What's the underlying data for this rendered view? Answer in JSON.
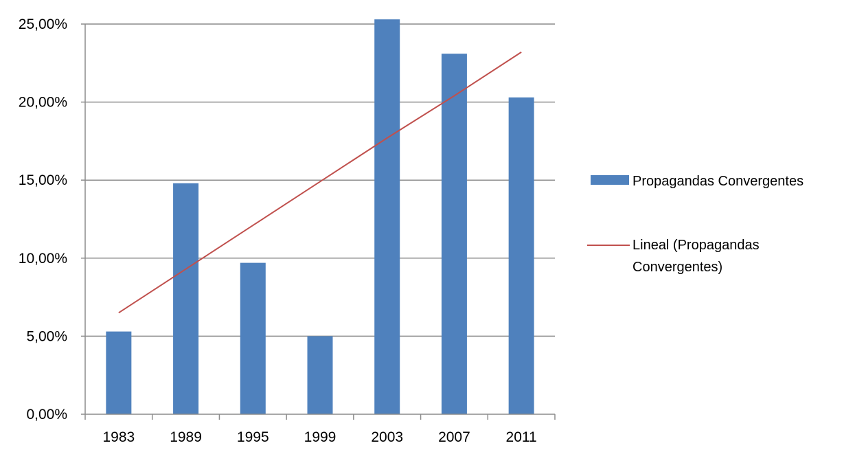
{
  "chart_data": {
    "type": "bar",
    "title": "",
    "xlabel": "",
    "ylabel": "",
    "categories": [
      "1983",
      "1989",
      "1995",
      "1999",
      "2003",
      "2007",
      "2011"
    ],
    "series": [
      {
        "name": "Propagandas Convergentes",
        "type": "bar",
        "color": "#4f81bd",
        "values": [
          5.3,
          14.8,
          9.7,
          5.0,
          25.3,
          23.1,
          20.3
        ]
      },
      {
        "name": "Lineal (Propagandas Convergentes)",
        "type": "line",
        "trendline": "linear",
        "color": "#c0504d",
        "values": [
          6.5,
          9.3,
          12.1,
          14.9,
          17.7,
          20.4,
          23.2
        ]
      }
    ],
    "ylim": [
      0,
      25
    ],
    "yticks": [
      0,
      5,
      10,
      15,
      20,
      25
    ],
    "ytick_labels": [
      "0,00%",
      "5,00%",
      "10,00%",
      "15,00%",
      "20,00%",
      "25,00%"
    ],
    "grid": true,
    "legend_position": "right"
  },
  "legend": {
    "bar_label": "Propagandas Convergentes",
    "line_label_line1": "Lineal (Propagandas",
    "line_label_line2": "Convergentes)"
  }
}
